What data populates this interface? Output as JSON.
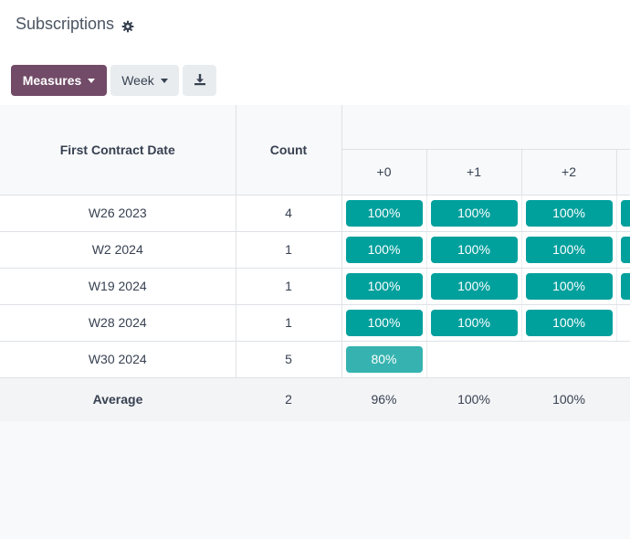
{
  "header": {
    "title": "Subscriptions",
    "settings_icon": "gear-icon"
  },
  "toolbar": {
    "measures_label": "Measures",
    "interval_label": "Week",
    "download_icon": "download-icon"
  },
  "colors": {
    "primary": "#714b67",
    "cell_full": "#00a09d",
    "cell_partial": "#36b3b0"
  },
  "table": {
    "date_header": "First Contract Date",
    "count_header": "Count",
    "periods": [
      "+0",
      "+1",
      "+2"
    ],
    "rows": [
      {
        "date": "W26 2023",
        "count": "4",
        "cells": [
          "100%",
          "100%",
          "100%"
        ],
        "levels": [
          1.0,
          1.0,
          1.0
        ]
      },
      {
        "date": "W2 2024",
        "count": "1",
        "cells": [
          "100%",
          "100%",
          "100%"
        ],
        "levels": [
          1.0,
          1.0,
          1.0
        ]
      },
      {
        "date": "W19 2024",
        "count": "1",
        "cells": [
          "100%",
          "100%",
          "100%"
        ],
        "levels": [
          1.0,
          1.0,
          1.0
        ]
      },
      {
        "date": "W28 2024",
        "count": "1",
        "cells": [
          "100%",
          "100%",
          "100%"
        ],
        "levels": [
          1.0,
          1.0,
          1.0
        ]
      },
      {
        "date": "W30 2024",
        "count": "5",
        "cells": [
          "80%",
          "",
          ""
        ],
        "levels": [
          0.8,
          null,
          null
        ]
      }
    ],
    "footer": {
      "label": "Average",
      "count": "2",
      "values": [
        "96%",
        "100%",
        "100%"
      ]
    }
  }
}
